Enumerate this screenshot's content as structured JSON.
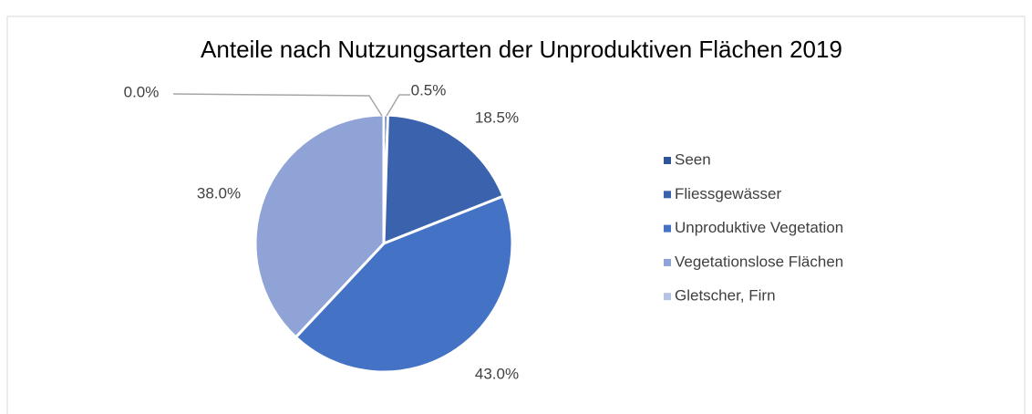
{
  "chart_data": {
    "type": "pie",
    "title": "Anteile nach Nutzungsarten der Unproduktiven Flächen 2019",
    "categories": [
      "Seen",
      "Fliessgewässer",
      "Unproduktive Vegetation",
      "Vegetationslose Flächen",
      "Gletscher, Firn"
    ],
    "values": [
      0.5,
      18.5,
      43.0,
      38.0,
      0.0
    ],
    "value_labels": [
      "0.5%",
      "18.5%",
      "43.0%",
      "38.0%",
      "0.0%"
    ],
    "colors": [
      "#2f5597",
      "#3b63ad",
      "#4472c4",
      "#8fa3d6",
      "#b4c2e4"
    ],
    "legend": "right"
  }
}
